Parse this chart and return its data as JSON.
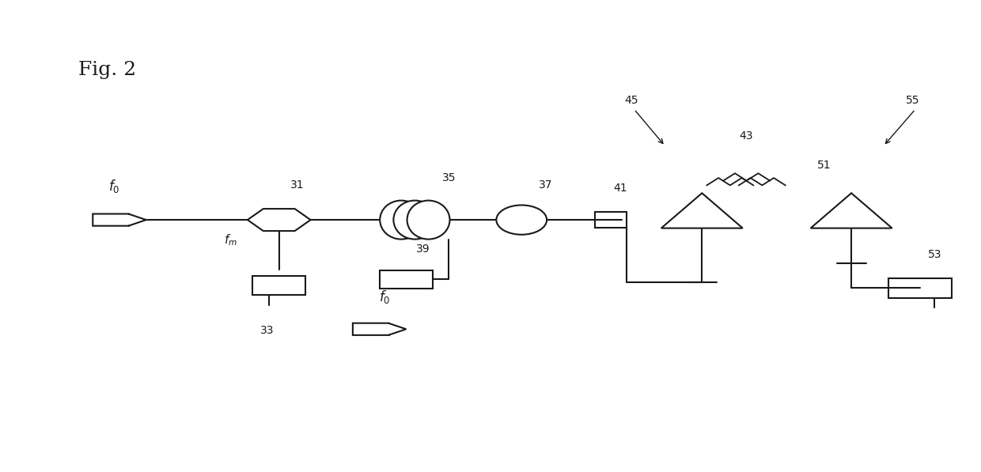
{
  "fig_label": "Fig. 2",
  "background_color": "#ffffff",
  "line_color": "#1a1a1a",
  "figsize": [
    12.4,
    5.97
  ],
  "dpi": 100
}
